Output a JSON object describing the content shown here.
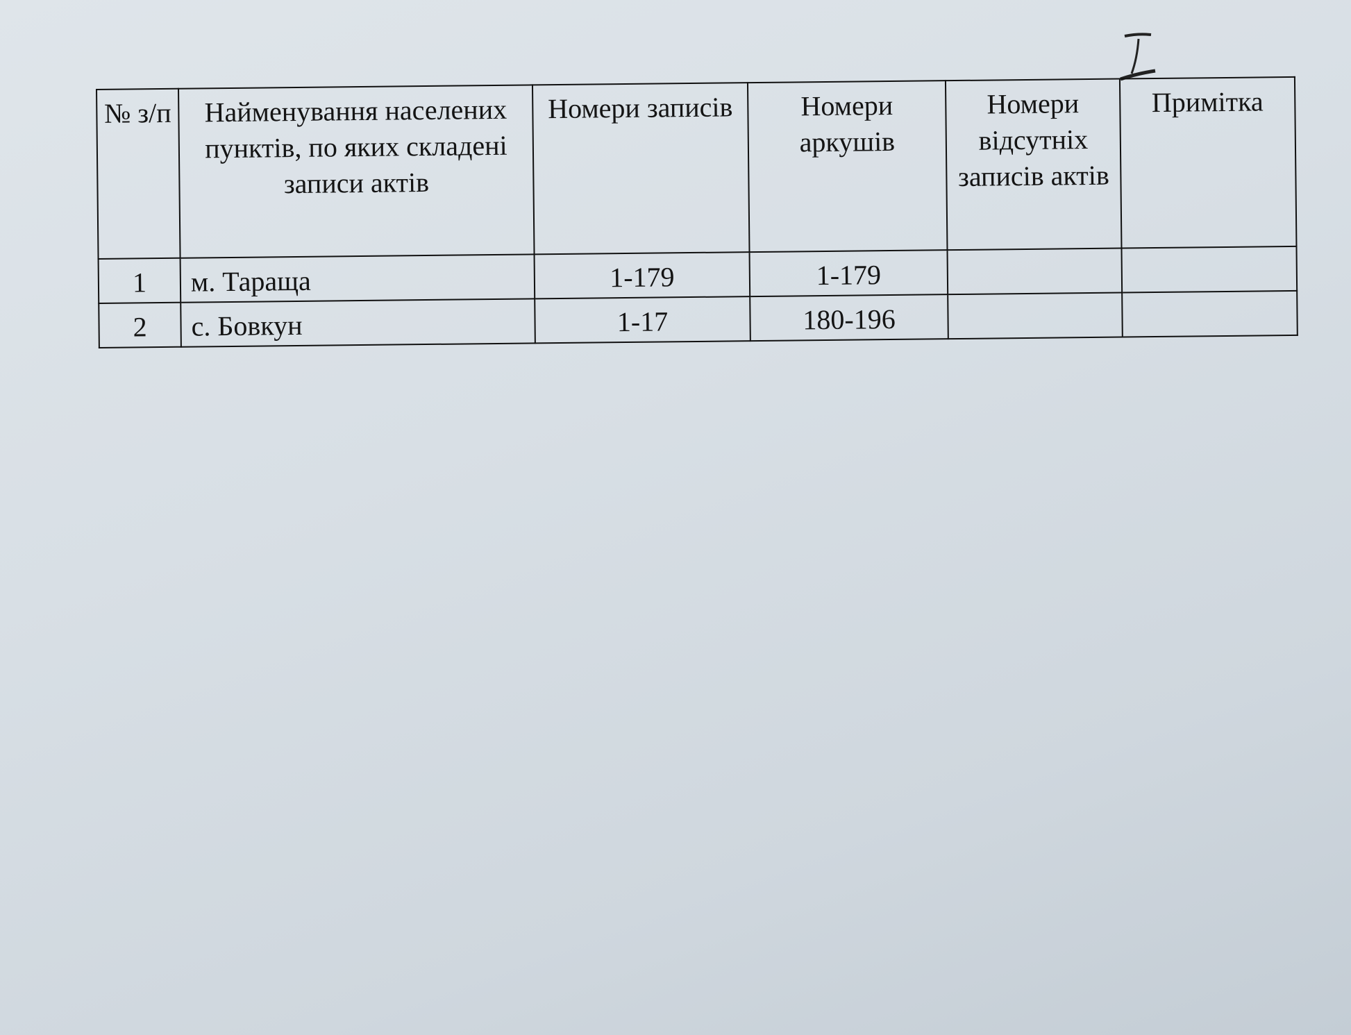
{
  "handwritten_mark": "I",
  "table": {
    "headers": [
      "№ з/п",
      "Найменування населених пунктів, по яких складені записи актів",
      "Номери записів",
      "Номери аркушів",
      "Номери відсутніх записів актів",
      "Примітка"
    ],
    "rows": [
      {
        "num": "1",
        "name": "м. Тараща",
        "records": "1-179",
        "sheets": "1-179",
        "missing": "",
        "note": ""
      },
      {
        "num": "2",
        "name": "с. Бовкун",
        "records": "1-17",
        "sheets": "180-196",
        "missing": "",
        "note": ""
      }
    ]
  }
}
